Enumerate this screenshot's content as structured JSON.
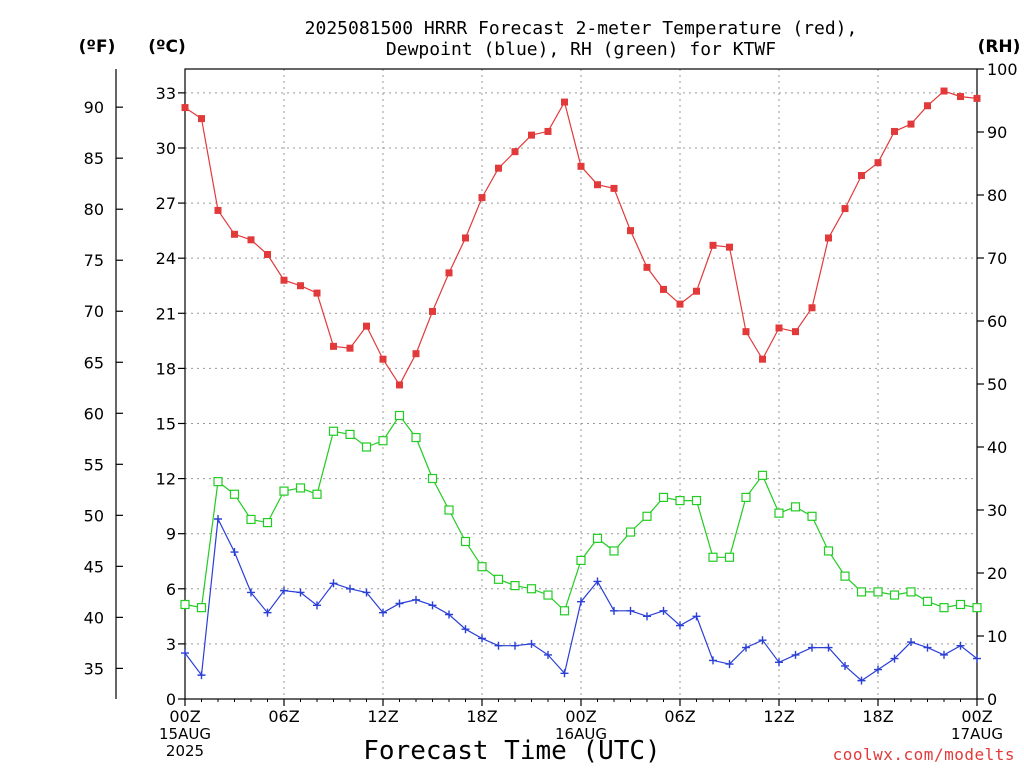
{
  "title": {
    "line1": "2025081500 HRRR Forecast 2-meter Temperature (red),",
    "line2": "Dewpoint (blue), RH (green) for KTWF"
  },
  "units": {
    "fahrenheit": "(ºF)",
    "celsius": "(ºC)",
    "rh": "(RH)"
  },
  "xlabel": "Forecast Time (UTC)",
  "credit": "coolwx.com/modelts",
  "x_ticks": [
    "00Z",
    "06Z",
    "12Z",
    "18Z",
    "00Z",
    "06Z",
    "12Z",
    "18Z",
    "00Z"
  ],
  "date_labels": [
    {
      "text": "15AUG",
      "hour": 0,
      "line": 1
    },
    {
      "text": "2025",
      "hour": 0,
      "line": 2
    },
    {
      "text": "16AUG",
      "hour": 24,
      "line": 1
    },
    {
      "text": "17AUG",
      "hour": 48,
      "line": 1
    }
  ],
  "colors": {
    "temperature": "#e23a3a",
    "dewpoint": "#2a3fd6",
    "rh": "#22cc22",
    "grid": "#9a9a9a"
  },
  "chart_data": {
    "type": "line",
    "x_unit": "forecast hour from 2025-08-15 00Z",
    "x": [
      0,
      1,
      2,
      3,
      4,
      5,
      6,
      7,
      8,
      9,
      10,
      11,
      12,
      13,
      14,
      15,
      16,
      17,
      18,
      19,
      20,
      21,
      22,
      23,
      24,
      25,
      26,
      27,
      28,
      29,
      30,
      31,
      32,
      33,
      34,
      35,
      36,
      37,
      38,
      39,
      40,
      41,
      42,
      43,
      44,
      45,
      46,
      47,
      48
    ],
    "xlim": [
      0,
      48
    ],
    "celsius_axis": {
      "ticks": [
        0,
        3,
        6,
        9,
        12,
        15,
        18,
        21,
        24,
        27,
        30,
        33
      ],
      "ylim": [
        0,
        34.3
      ]
    },
    "fahrenheit_axis": {
      "ticks": [
        35,
        40,
        45,
        50,
        55,
        60,
        65,
        70,
        75,
        80,
        85,
        90
      ]
    },
    "rh_axis": {
      "ticks": [
        0,
        10,
        20,
        30,
        40,
        50,
        60,
        70,
        80,
        90,
        100
      ],
      "ylim": [
        0,
        100
      ]
    },
    "series": [
      {
        "name": "Temperature",
        "axis": "celsius",
        "marker": "filled-square",
        "values": [
          32.2,
          31.6,
          26.6,
          25.3,
          25.0,
          24.2,
          22.8,
          22.5,
          22.1,
          19.2,
          19.1,
          20.3,
          18.5,
          17.1,
          18.8,
          21.1,
          23.2,
          25.1,
          27.3,
          28.9,
          29.8,
          30.7,
          30.9,
          32.5,
          29.0,
          28.0,
          27.8,
          25.5,
          23.5,
          22.3,
          21.5,
          22.2,
          24.7,
          24.6,
          20.0,
          18.5,
          20.2,
          20.0,
          21.3,
          25.1,
          26.7,
          28.5,
          29.2,
          30.9,
          31.3,
          32.3,
          33.1,
          32.8,
          32.7
        ]
      },
      {
        "name": "Dewpoint",
        "axis": "celsius",
        "marker": "plus",
        "values": [
          2.5,
          1.3,
          9.8,
          8.0,
          5.8,
          4.7,
          5.9,
          5.8,
          5.1,
          6.3,
          6.0,
          5.8,
          4.7,
          5.2,
          5.4,
          5.1,
          4.6,
          3.8,
          3.3,
          2.9,
          2.9,
          3.0,
          2.4,
          1.4,
          5.3,
          6.4,
          4.8,
          4.8,
          4.5,
          4.8,
          4.0,
          4.5,
          2.1,
          1.9,
          2.8,
          3.2,
          2.0,
          2.4,
          2.8,
          2.8,
          1.8,
          1.0,
          1.6,
          2.2,
          3.1,
          2.8,
          2.4,
          2.9,
          2.2
        ]
      },
      {
        "name": "RH",
        "axis": "rh",
        "marker": "open-square",
        "values": [
          15,
          14.5,
          34.5,
          32.5,
          28.5,
          28,
          33,
          33.5,
          32.5,
          42.5,
          42,
          40,
          41,
          45,
          41.5,
          35,
          30,
          25,
          21,
          19,
          18,
          17.5,
          16.5,
          14,
          22,
          25.5,
          23.5,
          26.5,
          29,
          32,
          31.5,
          31.5,
          22.5,
          22.5,
          32,
          35.5,
          29.5,
          30.5,
          29,
          23.5,
          19.5,
          17,
          17,
          16.5,
          17,
          15.5,
          14.5,
          15,
          14.5
        ]
      }
    ]
  }
}
